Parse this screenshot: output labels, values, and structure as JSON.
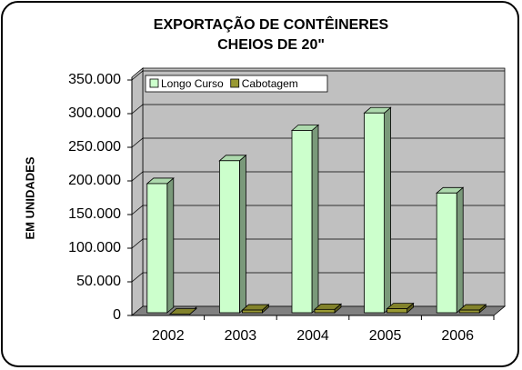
{
  "chart_data": {
    "type": "bar3d",
    "title": [
      "EXPORTAÇÃO DE CONTÊINERES",
      "CHEIOS DE 20\""
    ],
    "y_label": "EM UNIDADES",
    "categories": [
      "2002",
      "2003",
      "2004",
      "2005",
      "2006"
    ],
    "series": [
      {
        "name": "Longo Curso",
        "color": "#ccffcc",
        "values": [
          196000,
          230000,
          275000,
          301000,
          182000
        ]
      },
      {
        "name": "Cabotagem",
        "color": "#999933",
        "values": [
          2000,
          8000,
          9000,
          10000,
          8000
        ]
      }
    ],
    "ylim": [
      0,
      350000
    ],
    "yticks": [
      0,
      {
        "value": 50000,
        "label": "50.000"
      },
      {
        "value": 100000,
        "label": "100.000"
      },
      {
        "value": 150000,
        "label": "150.000"
      },
      {
        "value": 200000,
        "label": "200.000"
      },
      {
        "value": 250000,
        "label": "250.000"
      },
      {
        "value": 300000,
        "label": "300.000"
      },
      {
        "value": 350000,
        "label": "350.000"
      }
    ],
    "grid": true,
    "legend": "top-left"
  }
}
